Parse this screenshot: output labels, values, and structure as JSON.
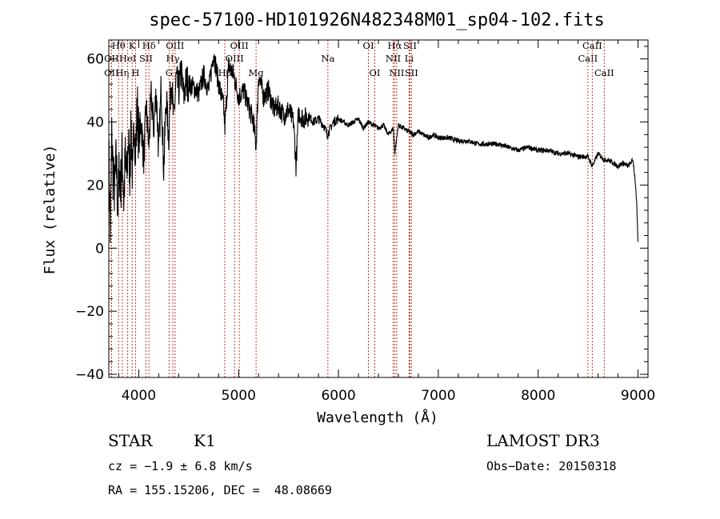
{
  "chart_data": {
    "type": "line",
    "title": "spec-57100-HD101926N482348M01_sp04-102.fits",
    "xlabel": "Wavelength (Å)",
    "ylabel": "Flux (relative)",
    "xlim": [
      3700,
      9100
    ],
    "ylim": [
      -41,
      66
    ],
    "xticks": [
      4000,
      5000,
      6000,
      7000,
      8000,
      9000
    ],
    "yticks": [
      -40,
      -20,
      0,
      20,
      40,
      60
    ],
    "series": [
      {
        "name": "spectrum",
        "x": [
          3700,
          3715,
          3730,
          3745,
          3760,
          3775,
          3790,
          3805,
          3820,
          3835,
          3850,
          3865,
          3880,
          3895,
          3910,
          3925,
          3940,
          3955,
          3970,
          3985,
          4000,
          4025,
          4050,
          4075,
          4100,
          4125,
          4150,
          4175,
          4200,
          4225,
          4250,
          4275,
          4300,
          4325,
          4350,
          4375,
          4400,
          4425,
          4450,
          4475,
          4500,
          4550,
          4600,
          4650,
          4700,
          4750,
          4800,
          4850,
          4862,
          4900,
          4950,
          5000,
          5050,
          5100,
          5150,
          5175,
          5200,
          5250,
          5300,
          5350,
          5400,
          5450,
          5500,
          5550,
          5575,
          5600,
          5650,
          5700,
          5750,
          5800,
          5850,
          5890,
          5950,
          6000,
          6050,
          6100,
          6150,
          6200,
          6250,
          6300,
          6350,
          6400,
          6450,
          6500,
          6550,
          6563,
          6600,
          6650,
          6700,
          6750,
          6800,
          6850,
          6900,
          6950,
          7000,
          7100,
          7200,
          7300,
          7400,
          7500,
          7600,
          7700,
          7800,
          7900,
          8000,
          8100,
          8200,
          8300,
          8400,
          8500,
          8542,
          8600,
          8662,
          8700,
          8750,
          8800,
          8850,
          8900,
          8950,
          8970,
          8985,
          9000
        ],
        "y": [
          30,
          5,
          35,
          22,
          18,
          28,
          12,
          25,
          20,
          30,
          15,
          28,
          22,
          35,
          25,
          38,
          20,
          42,
          30,
          45,
          35,
          40,
          28,
          45,
          32,
          48,
          38,
          50,
          30,
          52,
          25,
          48,
          35,
          55,
          40,
          54,
          50,
          56,
          48,
          53,
          52,
          51,
          49,
          55,
          50,
          62,
          52,
          45,
          38,
          58,
          55,
          48,
          50,
          45,
          40,
          32,
          55,
          48,
          50,
          44,
          45,
          42,
          44,
          40,
          26,
          43,
          41,
          42,
          40,
          41,
          39,
          36,
          40,
          41,
          40,
          39,
          40,
          41,
          38,
          40,
          39,
          38,
          39,
          36,
          38,
          30,
          39,
          38,
          37,
          36,
          37,
          36,
          35,
          36,
          35,
          35,
          34,
          34,
          33,
          33,
          33,
          32,
          31,
          32,
          31,
          31,
          30,
          30,
          29,
          29,
          26,
          30,
          28,
          28,
          27,
          26,
          27,
          26,
          28,
          22,
          15,
          2
        ]
      }
    ],
    "line_markers": [
      {
        "label": "Hθ",
        "x": 3798,
        "row": 1
      },
      {
        "label": "OII",
        "x": 3727,
        "row": 2
      },
      {
        "label": "OII",
        "x": 3727,
        "row": 3
      },
      {
        "label": "Hη",
        "x": 3835,
        "row": 3
      },
      {
        "label": "HeI",
        "x": 3889,
        "row": 2
      },
      {
        "label": "K",
        "x": 3934,
        "row": 1
      },
      {
        "label": "H",
        "x": 3968,
        "row": 3
      },
      {
        "label": "SII",
        "x": 4072,
        "row": 2
      },
      {
        "label": "Hδ",
        "x": 4102,
        "row": 1
      },
      {
        "label": "G",
        "x": 4304,
        "row": 3
      },
      {
        "label": "Hγ",
        "x": 4341,
        "row": 2
      },
      {
        "label": "OIII",
        "x": 4363,
        "row": 1
      },
      {
        "label": "Hβ",
        "x": 4861,
        "row": 3
      },
      {
        "label": "OIII",
        "x": 4959,
        "row": 2
      },
      {
        "label": "OIII",
        "x": 5007,
        "row": 1
      },
      {
        "label": "Mg",
        "x": 5175,
        "row": 3
      },
      {
        "label": "Na",
        "x": 5894,
        "row": 2
      },
      {
        "label": "OI",
        "x": 6300,
        "row": 1
      },
      {
        "label": "OI",
        "x": 6364,
        "row": 3
      },
      {
        "label": "NII",
        "x": 6548,
        "row": 2
      },
      {
        "label": "Hα",
        "x": 6563,
        "row": 1
      },
      {
        "label": "NII",
        "x": 6583,
        "row": 3
      },
      {
        "label": "SII",
        "x": 6716,
        "row": 1
      },
      {
        "label": "Li",
        "x": 6708,
        "row": 2
      },
      {
        "label": "SII",
        "x": 6731,
        "row": 3
      },
      {
        "label": "CaII",
        "x": 8498,
        "row": 2
      },
      {
        "label": "CaII",
        "x": 8542,
        "row": 1
      },
      {
        "label": "CaII",
        "x": 8662,
        "row": 3
      }
    ]
  },
  "info": {
    "object_class": "STAR",
    "subclass": "K1",
    "survey": "LAMOST DR3",
    "cz": "cz = −1.9 ± 6.8 km/s",
    "obs_date": "Obs−Date: 20150318",
    "coords": "RA = 155.15206, DEC =  48.08669"
  },
  "colors": {
    "line_marker": "#c0392b",
    "axes": "#000000",
    "spectrum": "#000000"
  }
}
